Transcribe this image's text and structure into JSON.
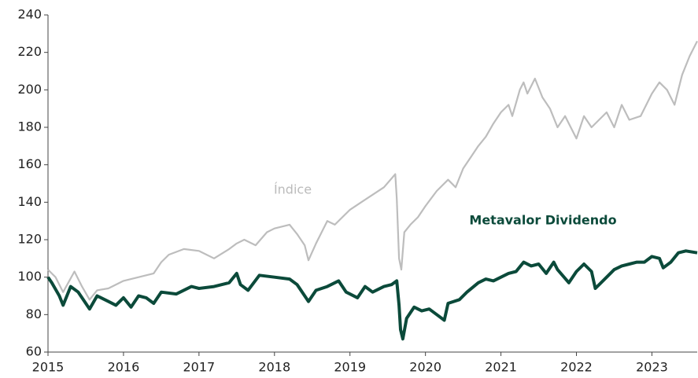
{
  "chart_data": {
    "type": "line",
    "xlim": [
      2015,
      2023.6
    ],
    "xticks": [
      2015,
      2016,
      2017,
      2018,
      2019,
      2020,
      2021,
      2022,
      2023
    ],
    "ylim": [
      60,
      240
    ],
    "yticks": [
      60,
      80,
      100,
      120,
      140,
      160,
      180,
      200,
      220,
      240
    ],
    "series": [
      {
        "name": "Índice",
        "color": "#bdbdbd",
        "x": [
          2015.0,
          2015.1,
          2015.2,
          2015.35,
          2015.45,
          2015.55,
          2015.65,
          2015.8,
          2016.0,
          2016.2,
          2016.4,
          2016.5,
          2016.6,
          2016.8,
          2017.0,
          2017.2,
          2017.4,
          2017.5,
          2017.6,
          2017.75,
          2017.9,
          2018.0,
          2018.2,
          2018.3,
          2018.4,
          2018.45,
          2018.55,
          2018.7,
          2018.8,
          2019.0,
          2019.15,
          2019.3,
          2019.45,
          2019.6,
          2019.62,
          2019.65,
          2019.68,
          2019.72,
          2019.8,
          2019.9,
          2020.0,
          2020.15,
          2020.3,
          2020.4,
          2020.5,
          2020.6,
          2020.7,
          2020.8,
          2020.9,
          2021.0,
          2021.1,
          2021.15,
          2021.25,
          2021.3,
          2021.35,
          2021.45,
          2021.55,
          2021.65,
          2021.75,
          2021.85,
          2022.0,
          2022.1,
          2022.2,
          2022.4,
          2022.5,
          2022.6,
          2022.7,
          2022.85,
          2023.0,
          2023.1,
          2023.2,
          2023.3,
          2023.4,
          2023.5,
          2023.6
        ],
        "values": [
          104,
          100,
          92,
          103,
          95,
          88,
          93,
          94,
          98,
          100,
          102,
          108,
          112,
          115,
          114,
          110,
          115,
          118,
          120,
          117,
          124,
          126,
          128,
          123,
          117,
          109,
          118,
          130,
          128,
          136,
          140,
          144,
          148,
          155,
          142,
          110,
          104,
          124,
          128,
          132,
          138,
          146,
          152,
          148,
          158,
          164,
          170,
          175,
          182,
          188,
          192,
          186,
          200,
          204,
          198,
          206,
          196,
          190,
          180,
          186,
          174,
          186,
          180,
          188,
          180,
          192,
          184,
          186,
          198,
          204,
          200,
          192,
          208,
          218,
          226
        ]
      },
      {
        "name": "Metavalor Dividendo",
        "color": "#0b4a3a",
        "x": [
          2015.0,
          2015.05,
          2015.15,
          2015.2,
          2015.3,
          2015.4,
          2015.5,
          2015.55,
          2015.65,
          2015.8,
          2015.9,
          2016.0,
          2016.1,
          2016.2,
          2016.3,
          2016.4,
          2016.5,
          2016.7,
          2016.9,
          2017.0,
          2017.2,
          2017.4,
          2017.5,
          2017.55,
          2017.65,
          2017.8,
          2018.0,
          2018.2,
          2018.3,
          2018.45,
          2018.55,
          2018.7,
          2018.85,
          2018.95,
          2019.1,
          2019.2,
          2019.3,
          2019.45,
          2019.55,
          2019.62,
          2019.65,
          2019.67,
          2019.7,
          2019.75,
          2019.85,
          2019.95,
          2020.05,
          2020.15,
          2020.25,
          2020.3,
          2020.45,
          2020.55,
          2020.7,
          2020.8,
          2020.9,
          2021.0,
          2021.1,
          2021.2,
          2021.3,
          2021.4,
          2021.5,
          2021.6,
          2021.7,
          2021.75,
          2021.9,
          2022.0,
          2022.1,
          2022.2,
          2022.25,
          2022.4,
          2022.5,
          2022.6,
          2022.7,
          2022.8,
          2022.9,
          2023.0,
          2023.1,
          2023.15,
          2023.25,
          2023.35,
          2023.45,
          2023.6
        ],
        "values": [
          100,
          97,
          90,
          85,
          95,
          92,
          86,
          83,
          90,
          87,
          85,
          89,
          84,
          90,
          89,
          86,
          92,
          91,
          95,
          94,
          95,
          97,
          102,
          96,
          93,
          101,
          100,
          99,
          96,
          87,
          93,
          95,
          98,
          92,
          89,
          95,
          92,
          95,
          96,
          98,
          85,
          72,
          67,
          78,
          84,
          82,
          83,
          80,
          77,
          86,
          88,
          92,
          97,
          99,
          98,
          100,
          102,
          103,
          108,
          106,
          107,
          102,
          108,
          104,
          97,
          103,
          107,
          103,
          94,
          100,
          104,
          106,
          107,
          108,
          108,
          111,
          110,
          105,
          108,
          113,
          114,
          113
        ]
      }
    ]
  }
}
